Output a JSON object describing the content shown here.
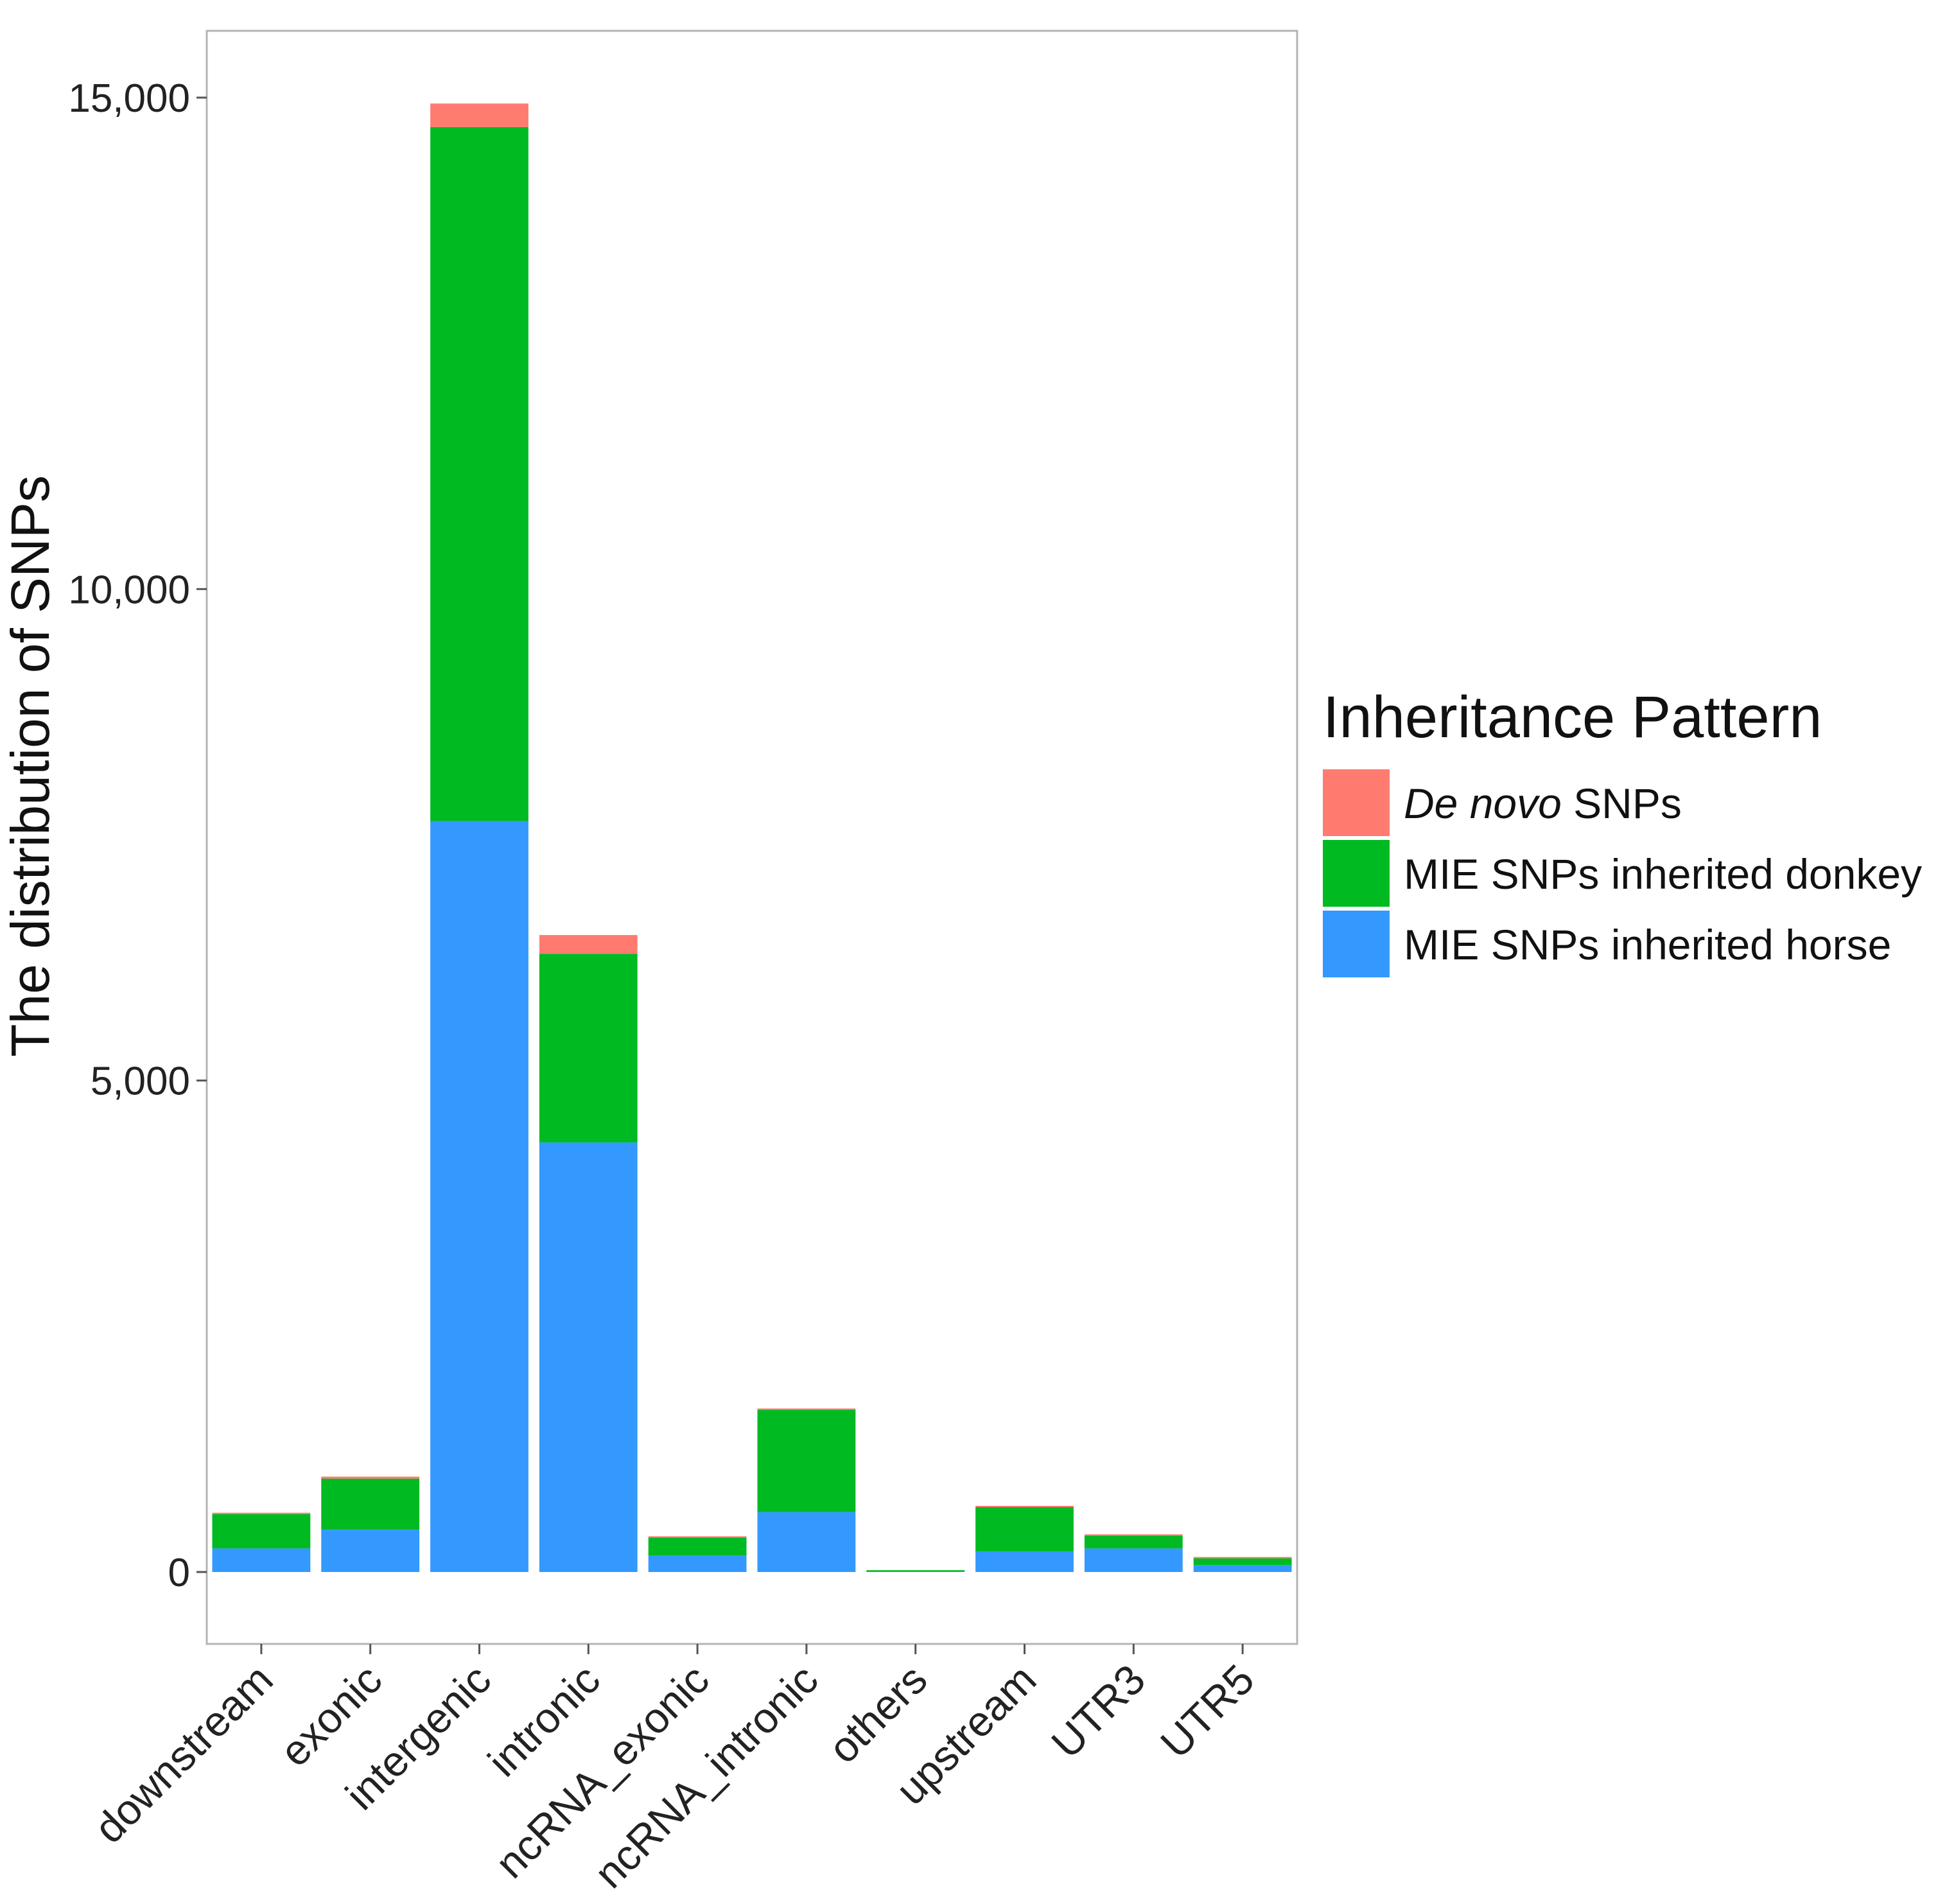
{
  "chart_data": {
    "type": "bar",
    "stacked": true,
    "title": "",
    "xlabel": "",
    "ylabel": "The distribution of SNPs",
    "ylim": [
      -640,
      16000
    ],
    "yticks": [
      0,
      5000,
      10000,
      15000
    ],
    "ytick_labels": [
      "0",
      "5,000",
      "10,000",
      "15,000"
    ],
    "grid": false,
    "categories": [
      "downstream",
      "exonic",
      "intergenic",
      "intronic",
      "ncRNA_exonic",
      "ncRNA_intronic",
      "others",
      "upstream",
      "UTR3",
      "UTR5"
    ],
    "series": [
      {
        "name": "MIE SNPs inherited horse",
        "color": "#3399FF",
        "values": [
          240,
          430,
          7640,
          4370,
          170,
          610,
          5,
          210,
          240,
          70
        ]
      },
      {
        "name": "MIE SNPs inherited donkey",
        "color": "#00BA22",
        "values": [
          350,
          520,
          7060,
          1920,
          180,
          1040,
          5,
          450,
          130,
          70
        ]
      },
      {
        "name": "De novo SNPs",
        "color": "#FF7B70",
        "values": [
          10,
          20,
          240,
          190,
          10,
          10,
          0,
          10,
          10,
          5
        ]
      }
    ],
    "legend": {
      "title": "Inheritance Pattern",
      "position": "right",
      "entries": [
        {
          "italic": "De novo",
          "text": " SNPs",
          "color": "#FF7B70"
        },
        {
          "italic": "",
          "text": "MIE SNPs inherited donkey",
          "color": "#00BA22"
        },
        {
          "italic": "",
          "text": "MIE SNPs inherited horse",
          "color": "#3399FF"
        }
      ]
    }
  }
}
